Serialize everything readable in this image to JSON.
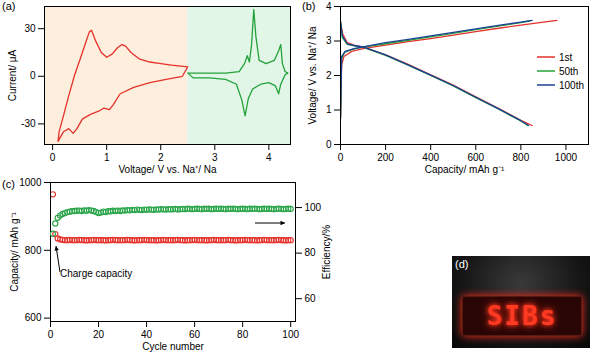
{
  "chart_data": [
    {
      "panel": "(a)",
      "type": "line",
      "x_label": "Voltage/ V vs. Na⁺/ Na",
      "y_label": "Current/ μA",
      "xlim": [
        -0.15,
        4.4
      ],
      "ylim": [
        -43,
        44
      ],
      "xticks": [
        0,
        1,
        2,
        3,
        4
      ],
      "yticks": [
        -30,
        0,
        30
      ],
      "regions": [
        {
          "x": [
            -0.15,
            2.5
          ],
          "color": "#fdeedd"
        },
        {
          "x": [
            2.5,
            4.4
          ],
          "color": "#e2f6e7"
        }
      ],
      "series": [
        {
          "color": "#e5312b",
          "x": [
            2.5,
            2.2,
            2.0,
            1.8,
            1.6,
            1.45,
            1.35,
            1.28,
            1.2,
            1.1,
            1.0,
            0.9,
            0.8,
            0.72,
            0.68,
            0.6,
            0.5,
            0.4,
            0.3,
            0.2,
            0.12,
            0.1,
            0.15,
            0.2,
            0.3,
            0.38,
            0.45,
            0.55,
            0.7,
            0.85,
            0.95,
            1.05,
            1.12,
            1.25,
            1.5,
            1.8,
            2.1,
            2.4,
            2.5
          ],
          "values": [
            6,
            7,
            8,
            9,
            11,
            15,
            19,
            20,
            18,
            14,
            12,
            15,
            22,
            29,
            28,
            20,
            10,
            0,
            -12,
            -25,
            -35,
            -41,
            -38,
            -35,
            -33,
            -36,
            -33,
            -27,
            -24,
            -22,
            -20,
            -21,
            -18,
            -11,
            -7,
            -4,
            -2,
            0,
            6
          ]
        },
        {
          "color": "#23a23a",
          "x": [
            2.5,
            2.8,
            3.2,
            3.45,
            3.55,
            3.6,
            3.64,
            3.68,
            3.72,
            3.76,
            3.82,
            3.95,
            4.1,
            4.18,
            4.22,
            4.25,
            4.3,
            4.35,
            4.3,
            4.22,
            4.18,
            4.12,
            4.0,
            3.85,
            3.7,
            3.62,
            3.56,
            3.5,
            3.4,
            3.2,
            2.9,
            2.6,
            2.5
          ],
          "values": [
            2,
            2,
            2,
            3,
            8,
            13,
            9,
            20,
            42,
            25,
            10,
            8,
            10,
            16,
            20,
            8,
            3,
            2,
            1,
            -5,
            -11,
            -6,
            -4,
            -5,
            -8,
            -14,
            -25,
            -15,
            -5,
            -2,
            -1,
            -1,
            2
          ]
        }
      ]
    },
    {
      "panel": "(b)",
      "type": "line",
      "x_label": "Capacity/ mAh g⁻¹",
      "y_label": "Voltage/ V vs. Na⁺/ Na",
      "xlim": [
        0,
        1100
      ],
      "ylim": [
        0,
        4
      ],
      "xticks": [
        0,
        200,
        400,
        600,
        800,
        1000
      ],
      "yticks": [
        0,
        1,
        2,
        3,
        4
      ],
      "legend": "right",
      "series": [
        {
          "name": "1st",
          "color": "#e5312b",
          "x": [
            0,
            5,
            15,
            50,
            100,
            200,
            300,
            400,
            500,
            600,
            700,
            800,
            900,
            960,
            null,
            0,
            10,
            30,
            60,
            100,
            200,
            300,
            400,
            500,
            600,
            700,
            800,
            850
          ],
          "values": [
            0.8,
            2.3,
            2.55,
            2.7,
            2.78,
            2.88,
            2.98,
            3.07,
            3.17,
            3.27,
            3.37,
            3.46,
            3.55,
            3.6,
            null,
            3.55,
            3.2,
            2.95,
            2.88,
            2.82,
            2.6,
            2.32,
            2.02,
            1.72,
            1.38,
            1.05,
            0.7,
            0.55
          ]
        },
        {
          "name": "50th",
          "color": "#23a23a",
          "x": [
            0,
            5,
            20,
            60,
            100,
            200,
            300,
            400,
            500,
            600,
            700,
            800,
            840,
            null,
            0,
            8,
            30,
            60,
            100,
            200,
            300,
            400,
            500,
            600,
            700,
            800,
            830
          ],
          "values": [
            0.75,
            2.5,
            2.68,
            2.77,
            2.82,
            2.92,
            3.02,
            3.12,
            3.22,
            3.33,
            3.43,
            3.53,
            3.58,
            null,
            3.6,
            3.1,
            2.9,
            2.86,
            2.82,
            2.58,
            2.3,
            2.0,
            1.7,
            1.36,
            1.03,
            0.68,
            0.55
          ]
        },
        {
          "name": "100th",
          "color": "#1c3f95",
          "x": [
            0,
            5,
            20,
            60,
            100,
            200,
            300,
            400,
            500,
            600,
            700,
            800,
            850,
            null,
            0,
            8,
            30,
            60,
            100,
            200,
            300,
            400,
            500,
            600,
            700,
            800,
            835
          ],
          "values": [
            0.75,
            2.55,
            2.7,
            2.78,
            2.83,
            2.95,
            3.05,
            3.15,
            3.25,
            3.35,
            3.45,
            3.55,
            3.6,
            null,
            3.55,
            3.15,
            2.92,
            2.87,
            2.83,
            2.6,
            2.31,
            2.01,
            1.71,
            1.37,
            1.04,
            0.69,
            0.55
          ]
        }
      ]
    },
    {
      "panel": "(c)",
      "type": "scatter",
      "x_label": "Cycle number",
      "y_label": "Capacity/ mAh g⁻¹",
      "y2_label": "Efficiency/%",
      "xlim": [
        0,
        102
      ],
      "ylim": [
        590,
        1000
      ],
      "y2lim": [
        50,
        111
      ],
      "xticks": [
        0,
        20,
        40,
        60,
        80,
        100
      ],
      "yticks": [
        600,
        800,
        1000
      ],
      "y2ticks": [
        60,
        80,
        100
      ],
      "annotations": [
        {
          "text": "Charge capacity"
        }
      ],
      "x": [
        1,
        2,
        3,
        4,
        5,
        6,
        7,
        8,
        9,
        10,
        11,
        12,
        13,
        14,
        15,
        16,
        17,
        18,
        19,
        20,
        21,
        22,
        23,
        24,
        25,
        26,
        27,
        28,
        29,
        30,
        31,
        32,
        33,
        34,
        35,
        36,
        37,
        38,
        39,
        40,
        41,
        42,
        43,
        44,
        45,
        46,
        47,
        48,
        49,
        50,
        51,
        52,
        53,
        54,
        55,
        56,
        57,
        58,
        59,
        60,
        61,
        62,
        63,
        64,
        65,
        66,
        67,
        68,
        69,
        70,
        71,
        72,
        73,
        74,
        75,
        76,
        77,
        78,
        79,
        80,
        81,
        82,
        83,
        84,
        85,
        86,
        87,
        88,
        89,
        90,
        91,
        92,
        93,
        94,
        95,
        96,
        97,
        98,
        99,
        100
      ],
      "series": [
        {
          "color": "#e5312b",
          "marker": "open_circle",
          "values": [
            965,
            848,
            835,
            832,
            831,
            830,
            830,
            831,
            830,
            830,
            830,
            831,
            830,
            830,
            829,
            830,
            830,
            831,
            830,
            830,
            830,
            830,
            829,
            830,
            830,
            831,
            830,
            830,
            830,
            830,
            830,
            831,
            830,
            830,
            829,
            830,
            830,
            830,
            831,
            830,
            830,
            830,
            830,
            829,
            830,
            830,
            831,
            830,
            830,
            830,
            830,
            830,
            831,
            830,
            830,
            829,
            830,
            830,
            830,
            831,
            830,
            830,
            830,
            830,
            829,
            830,
            830,
            831,
            830,
            830,
            830,
            830,
            830,
            831,
            830,
            830,
            829,
            830,
            830,
            830,
            831,
            830,
            830,
            830,
            830,
            829,
            830,
            830,
            831,
            830,
            830,
            830,
            830,
            830,
            831,
            830,
            830,
            829,
            830,
            830
          ]
        },
        {
          "color": "#2aa54a",
          "marker": "open_circle",
          "axis": "y2",
          "values": [
            88.5,
            93,
            95.5,
            96.5,
            97.2,
            97.6,
            98,
            98.2,
            98.4,
            98.5,
            98.6,
            98.7,
            98.5,
            98.8,
            98.6,
            98.9,
            98.7,
            98.5,
            98.0,
            97.6,
            97.8,
            98.2,
            98.0,
            98.4,
            98.3,
            98.6,
            98.5,
            98.7,
            98.5,
            98.8,
            98.7,
            98.9,
            98.8,
            99.0,
            98.9,
            99.1,
            99.0,
            98.9,
            99.1,
            99.0,
            99.2,
            99.1,
            99.0,
            99.2,
            99.1,
            99.3,
            99.2,
            99.1,
            99.3,
            99.2,
            99.3,
            99.4,
            99.2,
            99.3,
            99.4,
            99.3,
            99.5,
            99.4,
            99.3,
            99.4,
            99.5,
            99.4,
            99.3,
            99.5,
            99.4,
            99.5,
            99.3,
            99.4,
            99.5,
            99.4,
            99.5,
            99.4,
            99.3,
            99.5,
            99.4,
            99.5,
            99.4,
            99.3,
            99.4,
            99.5,
            99.4,
            99.3,
            99.5,
            99.4,
            99.5,
            99.4,
            99.3,
            99.4,
            99.5,
            99.4,
            99.5,
            99.4,
            99.3,
            99.4,
            99.5,
            99.4,
            99.3,
            99.4,
            99.5,
            99.4
          ]
        }
      ]
    }
  ],
  "photo": {
    "panel": "(d)",
    "text": "SIBs"
  }
}
